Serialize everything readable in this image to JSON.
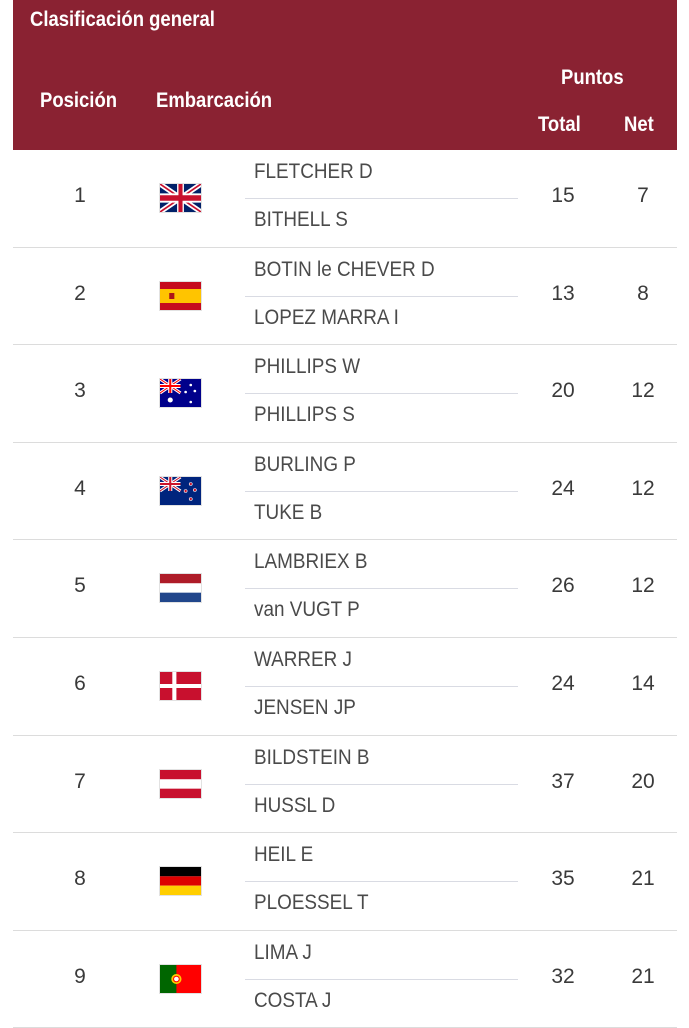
{
  "header": {
    "title": "Clasificación general",
    "position_label": "Posición",
    "boat_label": "Embarcación",
    "points_label": "Puntos",
    "total_label": "Total",
    "net_label": "Net"
  },
  "colors": {
    "header_bg": "#8a2232",
    "header_text": "#ffffff"
  },
  "rows": [
    {
      "rank": "1",
      "flag": "great-britain-flag",
      "sailors": [
        "FLETCHER D",
        "BITHELL S"
      ],
      "total": "15",
      "net": "7"
    },
    {
      "rank": "2",
      "flag": "spain-flag",
      "sailors": [
        "BOTIN le CHEVER D",
        "LOPEZ MARRA I"
      ],
      "total": "13",
      "net": "8"
    },
    {
      "rank": "3",
      "flag": "australia-flag",
      "sailors": [
        "PHILLIPS W",
        "PHILLIPS S"
      ],
      "total": "20",
      "net": "12"
    },
    {
      "rank": "4",
      "flag": "new-zealand-flag",
      "sailors": [
        "BURLING P",
        "TUKE B"
      ],
      "total": "24",
      "net": "12"
    },
    {
      "rank": "5",
      "flag": "netherlands-flag",
      "sailors": [
        "LAMBRIEX B",
        "van VUGT P"
      ],
      "total": "26",
      "net": "12"
    },
    {
      "rank": "6",
      "flag": "denmark-flag",
      "sailors": [
        "WARRER J",
        "JENSEN JP"
      ],
      "total": "24",
      "net": "14"
    },
    {
      "rank": "7",
      "flag": "austria-flag",
      "sailors": [
        "BILDSTEIN B",
        "HUSSL D"
      ],
      "total": "37",
      "net": "20"
    },
    {
      "rank": "8",
      "flag": "germany-flag",
      "sailors": [
        "HEIL E",
        "PLOESSEL T"
      ],
      "total": "35",
      "net": "21"
    },
    {
      "rank": "9",
      "flag": "portugal-flag",
      "sailors": [
        "LIMA J",
        "COSTA J"
      ],
      "total": "32",
      "net": "21"
    }
  ]
}
